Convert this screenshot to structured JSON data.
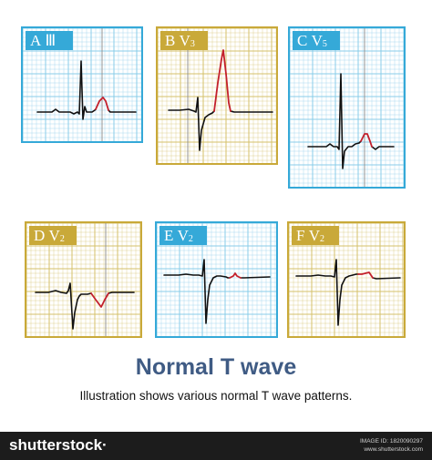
{
  "colors": {
    "blue": "#35a9d8",
    "gold": "#c9a939",
    "grid_blue": "#89cce8",
    "grid_gold": "#d4c06a",
    "t_wave": "#c3202c",
    "trace": "#111111"
  },
  "panels": [
    {
      "letter": "A",
      "lead": "Ⅲ",
      "sub": "",
      "theme": "blue"
    },
    {
      "letter": "B",
      "lead": "V",
      "sub": "3",
      "theme": "gold"
    },
    {
      "letter": "C",
      "lead": "V",
      "sub": "5",
      "theme": "blue"
    },
    {
      "letter": "D",
      "lead": "V",
      "sub": "2",
      "theme": "gold"
    },
    {
      "letter": "E",
      "lead": "V",
      "sub": "2",
      "theme": "blue"
    },
    {
      "letter": "F",
      "lead": "V",
      "sub": "2",
      "theme": "gold"
    }
  ],
  "title": "Normal T wave",
  "subtitle": "Illustration shows various normal T wave patterns.",
  "footer": {
    "brand": "shutterstock",
    "brand_suffix": "·",
    "image_id": "IMAGE ID: 1820090297",
    "site": "www.shutterstock.com"
  }
}
